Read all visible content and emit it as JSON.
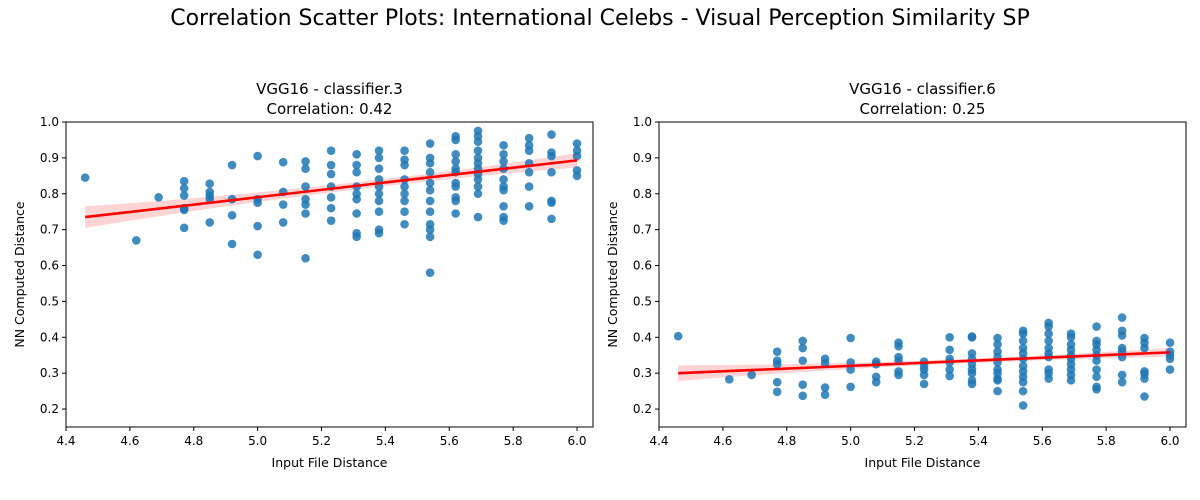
{
  "suptitle": "Correlation Scatter Plots: International Celebs - Visual Perception Similarity SP",
  "colors": {
    "points": "#1f77b4",
    "fit_line": "#ff0000",
    "ci_band": "#ffcccc",
    "axes": "#000000"
  },
  "chart_data": [
    {
      "type": "scatter",
      "title": "VGG16 - classifier.3",
      "subtitle": "Correlation: 0.42",
      "xlabel": "Input File Distance",
      "ylabel": "NN Computed Distance",
      "xlim": [
        4.4,
        6.05
      ],
      "ylim": [
        0.15,
        1.0
      ],
      "xticks": [
        "4.4",
        "4.6",
        "4.8",
        "5.0",
        "5.2",
        "5.4",
        "5.6",
        "5.8",
        "6.0"
      ],
      "yticks": [
        "0.2",
        "0.3",
        "0.4",
        "0.5",
        "0.6",
        "0.7",
        "0.8",
        "0.9",
        "1.0"
      ],
      "regression": {
        "x": [
          4.46,
          6.0
        ],
        "y": [
          0.735,
          0.893
        ]
      },
      "ci_halfwidth": {
        "at_min": 0.03,
        "at_mid": 0.01,
        "at_max": 0.02
      },
      "points": [
        [
          4.46,
          0.845
        ],
        [
          4.62,
          0.67
        ],
        [
          4.69,
          0.79
        ],
        [
          4.77,
          0.835
        ],
        [
          4.77,
          0.815
        ],
        [
          4.77,
          0.795
        ],
        [
          4.77,
          0.76
        ],
        [
          4.77,
          0.755
        ],
        [
          4.77,
          0.705
        ],
        [
          4.85,
          0.828
        ],
        [
          4.85,
          0.805
        ],
        [
          4.85,
          0.795
        ],
        [
          4.85,
          0.785
        ],
        [
          4.85,
          0.72
        ],
        [
          4.92,
          0.88
        ],
        [
          4.92,
          0.785
        ],
        [
          4.92,
          0.74
        ],
        [
          4.92,
          0.66
        ],
        [
          5.0,
          0.905
        ],
        [
          5.0,
          0.785
        ],
        [
          5.0,
          0.775
        ],
        [
          5.0,
          0.71
        ],
        [
          5.0,
          0.63
        ],
        [
          5.08,
          0.888
        ],
        [
          5.08,
          0.805
        ],
        [
          5.08,
          0.77
        ],
        [
          5.08,
          0.72
        ],
        [
          5.15,
          0.89
        ],
        [
          5.15,
          0.87
        ],
        [
          5.15,
          0.82
        ],
        [
          5.15,
          0.785
        ],
        [
          5.15,
          0.77
        ],
        [
          5.15,
          0.745
        ],
        [
          5.15,
          0.62
        ],
        [
          5.23,
          0.92
        ],
        [
          5.23,
          0.88
        ],
        [
          5.23,
          0.855
        ],
        [
          5.23,
          0.82
        ],
        [
          5.23,
          0.79
        ],
        [
          5.23,
          0.76
        ],
        [
          5.23,
          0.725
        ],
        [
          5.31,
          0.91
        ],
        [
          5.31,
          0.88
        ],
        [
          5.31,
          0.86
        ],
        [
          5.31,
          0.82
        ],
        [
          5.31,
          0.8
        ],
        [
          5.31,
          0.785
        ],
        [
          5.31,
          0.745
        ],
        [
          5.31,
          0.69
        ],
        [
          5.31,
          0.68
        ],
        [
          5.38,
          0.92
        ],
        [
          5.38,
          0.9
        ],
        [
          5.38,
          0.87
        ],
        [
          5.38,
          0.84
        ],
        [
          5.38,
          0.82
        ],
        [
          5.38,
          0.8
        ],
        [
          5.38,
          0.78
        ],
        [
          5.38,
          0.75
        ],
        [
          5.38,
          0.7
        ],
        [
          5.38,
          0.69
        ],
        [
          5.46,
          0.92
        ],
        [
          5.46,
          0.895
        ],
        [
          5.46,
          0.88
        ],
        [
          5.46,
          0.84
        ],
        [
          5.46,
          0.82
        ],
        [
          5.46,
          0.8
        ],
        [
          5.46,
          0.78
        ],
        [
          5.46,
          0.75
        ],
        [
          5.46,
          0.715
        ],
        [
          5.54,
          0.94
        ],
        [
          5.54,
          0.9
        ],
        [
          5.54,
          0.885
        ],
        [
          5.54,
          0.86
        ],
        [
          5.54,
          0.83
        ],
        [
          5.54,
          0.81
        ],
        [
          5.54,
          0.78
        ],
        [
          5.54,
          0.75
        ],
        [
          5.54,
          0.715
        ],
        [
          5.54,
          0.7
        ],
        [
          5.54,
          0.68
        ],
        [
          5.54,
          0.58
        ],
        [
          5.62,
          0.96
        ],
        [
          5.62,
          0.95
        ],
        [
          5.62,
          0.91
        ],
        [
          5.62,
          0.89
        ],
        [
          5.62,
          0.87
        ],
        [
          5.62,
          0.86
        ],
        [
          5.62,
          0.83
        ],
        [
          5.62,
          0.82
        ],
        [
          5.62,
          0.79
        ],
        [
          5.62,
          0.78
        ],
        [
          5.62,
          0.745
        ],
        [
          5.69,
          0.975
        ],
        [
          5.69,
          0.96
        ],
        [
          5.69,
          0.945
        ],
        [
          5.69,
          0.92
        ],
        [
          5.69,
          0.9
        ],
        [
          5.69,
          0.885
        ],
        [
          5.69,
          0.87
        ],
        [
          5.69,
          0.855
        ],
        [
          5.69,
          0.84
        ],
        [
          5.69,
          0.82
        ],
        [
          5.69,
          0.8
        ],
        [
          5.69,
          0.735
        ],
        [
          5.77,
          0.935
        ],
        [
          5.77,
          0.91
        ],
        [
          5.77,
          0.89
        ],
        [
          5.77,
          0.87
        ],
        [
          5.77,
          0.84
        ],
        [
          5.77,
          0.82
        ],
        [
          5.77,
          0.81
        ],
        [
          5.77,
          0.765
        ],
        [
          5.77,
          0.735
        ],
        [
          5.77,
          0.725
        ],
        [
          5.85,
          0.955
        ],
        [
          5.85,
          0.935
        ],
        [
          5.85,
          0.92
        ],
        [
          5.85,
          0.885
        ],
        [
          5.85,
          0.86
        ],
        [
          5.85,
          0.82
        ],
        [
          5.85,
          0.765
        ],
        [
          5.92,
          0.965
        ],
        [
          5.92,
          0.915
        ],
        [
          5.92,
          0.905
        ],
        [
          5.92,
          0.86
        ],
        [
          5.92,
          0.78
        ],
        [
          5.92,
          0.775
        ],
        [
          5.92,
          0.73
        ],
        [
          6.0,
          0.94
        ],
        [
          6.0,
          0.92
        ],
        [
          6.0,
          0.905
        ],
        [
          6.0,
          0.865
        ],
        [
          6.0,
          0.85
        ]
      ]
    },
    {
      "type": "scatter",
      "title": "VGG16 - classifier.6",
      "subtitle": "Correlation: 0.25",
      "xlabel": "Input File Distance",
      "ylabel": "NN Computed Distance",
      "xlim": [
        4.4,
        6.05
      ],
      "ylim": [
        0.15,
        1.0
      ],
      "xticks": [
        "4.4",
        "4.6",
        "4.8",
        "5.0",
        "5.2",
        "5.4",
        "5.6",
        "5.8",
        "6.0"
      ],
      "yticks": [
        "0.2",
        "0.3",
        "0.4",
        "0.5",
        "0.6",
        "0.7",
        "0.8",
        "0.9",
        "1.0"
      ],
      "regression": {
        "x": [
          4.46,
          6.0
        ],
        "y": [
          0.3,
          0.358
        ]
      },
      "ci_halfwidth": {
        "at_min": 0.022,
        "at_mid": 0.006,
        "at_max": 0.012
      },
      "points": [
        [
          4.46,
          0.403
        ],
        [
          4.62,
          0.283
        ],
        [
          4.69,
          0.295
        ],
        [
          4.77,
          0.36
        ],
        [
          4.77,
          0.335
        ],
        [
          4.77,
          0.325
        ],
        [
          4.77,
          0.275
        ],
        [
          4.77,
          0.248
        ],
        [
          4.85,
          0.39
        ],
        [
          4.85,
          0.37
        ],
        [
          4.85,
          0.335
        ],
        [
          4.85,
          0.268
        ],
        [
          4.85,
          0.237
        ],
        [
          4.92,
          0.34
        ],
        [
          4.92,
          0.328
        ],
        [
          4.92,
          0.26
        ],
        [
          4.92,
          0.24
        ],
        [
          5.0,
          0.398
        ],
        [
          5.0,
          0.33
        ],
        [
          5.0,
          0.31
        ],
        [
          5.0,
          0.262
        ],
        [
          5.08,
          0.332
        ],
        [
          5.08,
          0.325
        ],
        [
          5.08,
          0.29
        ],
        [
          5.08,
          0.275
        ],
        [
          5.15,
          0.385
        ],
        [
          5.15,
          0.375
        ],
        [
          5.15,
          0.345
        ],
        [
          5.15,
          0.335
        ],
        [
          5.15,
          0.305
        ],
        [
          5.15,
          0.295
        ],
        [
          5.23,
          0.332
        ],
        [
          5.23,
          0.32
        ],
        [
          5.23,
          0.31
        ],
        [
          5.23,
          0.295
        ],
        [
          5.23,
          0.27
        ],
        [
          5.31,
          0.4
        ],
        [
          5.31,
          0.365
        ],
        [
          5.31,
          0.34
        ],
        [
          5.31,
          0.33
        ],
        [
          5.31,
          0.31
        ],
        [
          5.31,
          0.292
        ],
        [
          5.38,
          0.402
        ],
        [
          5.38,
          0.4
        ],
        [
          5.38,
          0.355
        ],
        [
          5.38,
          0.34
        ],
        [
          5.38,
          0.325
        ],
        [
          5.38,
          0.31
        ],
        [
          5.38,
          0.3
        ],
        [
          5.38,
          0.28
        ],
        [
          5.38,
          0.27
        ],
        [
          5.46,
          0.398
        ],
        [
          5.46,
          0.38
        ],
        [
          5.46,
          0.36
        ],
        [
          5.46,
          0.345
        ],
        [
          5.46,
          0.33
        ],
        [
          5.46,
          0.31
        ],
        [
          5.46,
          0.3
        ],
        [
          5.46,
          0.285
        ],
        [
          5.46,
          0.28
        ],
        [
          5.46,
          0.25
        ],
        [
          5.54,
          0.418
        ],
        [
          5.54,
          0.41
        ],
        [
          5.54,
          0.39
        ],
        [
          5.54,
          0.37
        ],
        [
          5.54,
          0.355
        ],
        [
          5.54,
          0.34
        ],
        [
          5.54,
          0.32
        ],
        [
          5.54,
          0.305
        ],
        [
          5.54,
          0.29
        ],
        [
          5.54,
          0.275
        ],
        [
          5.54,
          0.25
        ],
        [
          5.54,
          0.21
        ],
        [
          5.62,
          0.44
        ],
        [
          5.62,
          0.43
        ],
        [
          5.62,
          0.41
        ],
        [
          5.62,
          0.39
        ],
        [
          5.62,
          0.37
        ],
        [
          5.62,
          0.355
        ],
        [
          5.62,
          0.345
        ],
        [
          5.62,
          0.31
        ],
        [
          5.62,
          0.3
        ],
        [
          5.62,
          0.285
        ],
        [
          5.69,
          0.41
        ],
        [
          5.69,
          0.4
        ],
        [
          5.69,
          0.38
        ],
        [
          5.69,
          0.365
        ],
        [
          5.69,
          0.35
        ],
        [
          5.69,
          0.34
        ],
        [
          5.69,
          0.325
        ],
        [
          5.69,
          0.31
        ],
        [
          5.69,
          0.295
        ],
        [
          5.69,
          0.28
        ],
        [
          5.77,
          0.43
        ],
        [
          5.77,
          0.39
        ],
        [
          5.77,
          0.38
        ],
        [
          5.77,
          0.365
        ],
        [
          5.77,
          0.35
        ],
        [
          5.77,
          0.335
        ],
        [
          5.77,
          0.31
        ],
        [
          5.77,
          0.29
        ],
        [
          5.77,
          0.262
        ],
        [
          5.77,
          0.255
        ],
        [
          5.85,
          0.455
        ],
        [
          5.85,
          0.418
        ],
        [
          5.85,
          0.405
        ],
        [
          5.85,
          0.37
        ],
        [
          5.85,
          0.36
        ],
        [
          5.85,
          0.345
        ],
        [
          5.85,
          0.295
        ],
        [
          5.85,
          0.275
        ],
        [
          5.92,
          0.398
        ],
        [
          5.92,
          0.385
        ],
        [
          5.92,
          0.37
        ],
        [
          5.92,
          0.305
        ],
        [
          5.92,
          0.298
        ],
        [
          5.92,
          0.285
        ],
        [
          5.92,
          0.235
        ],
        [
          6.0,
          0.385
        ],
        [
          6.0,
          0.36
        ],
        [
          6.0,
          0.35
        ],
        [
          6.0,
          0.34
        ],
        [
          6.0,
          0.31
        ]
      ]
    }
  ]
}
